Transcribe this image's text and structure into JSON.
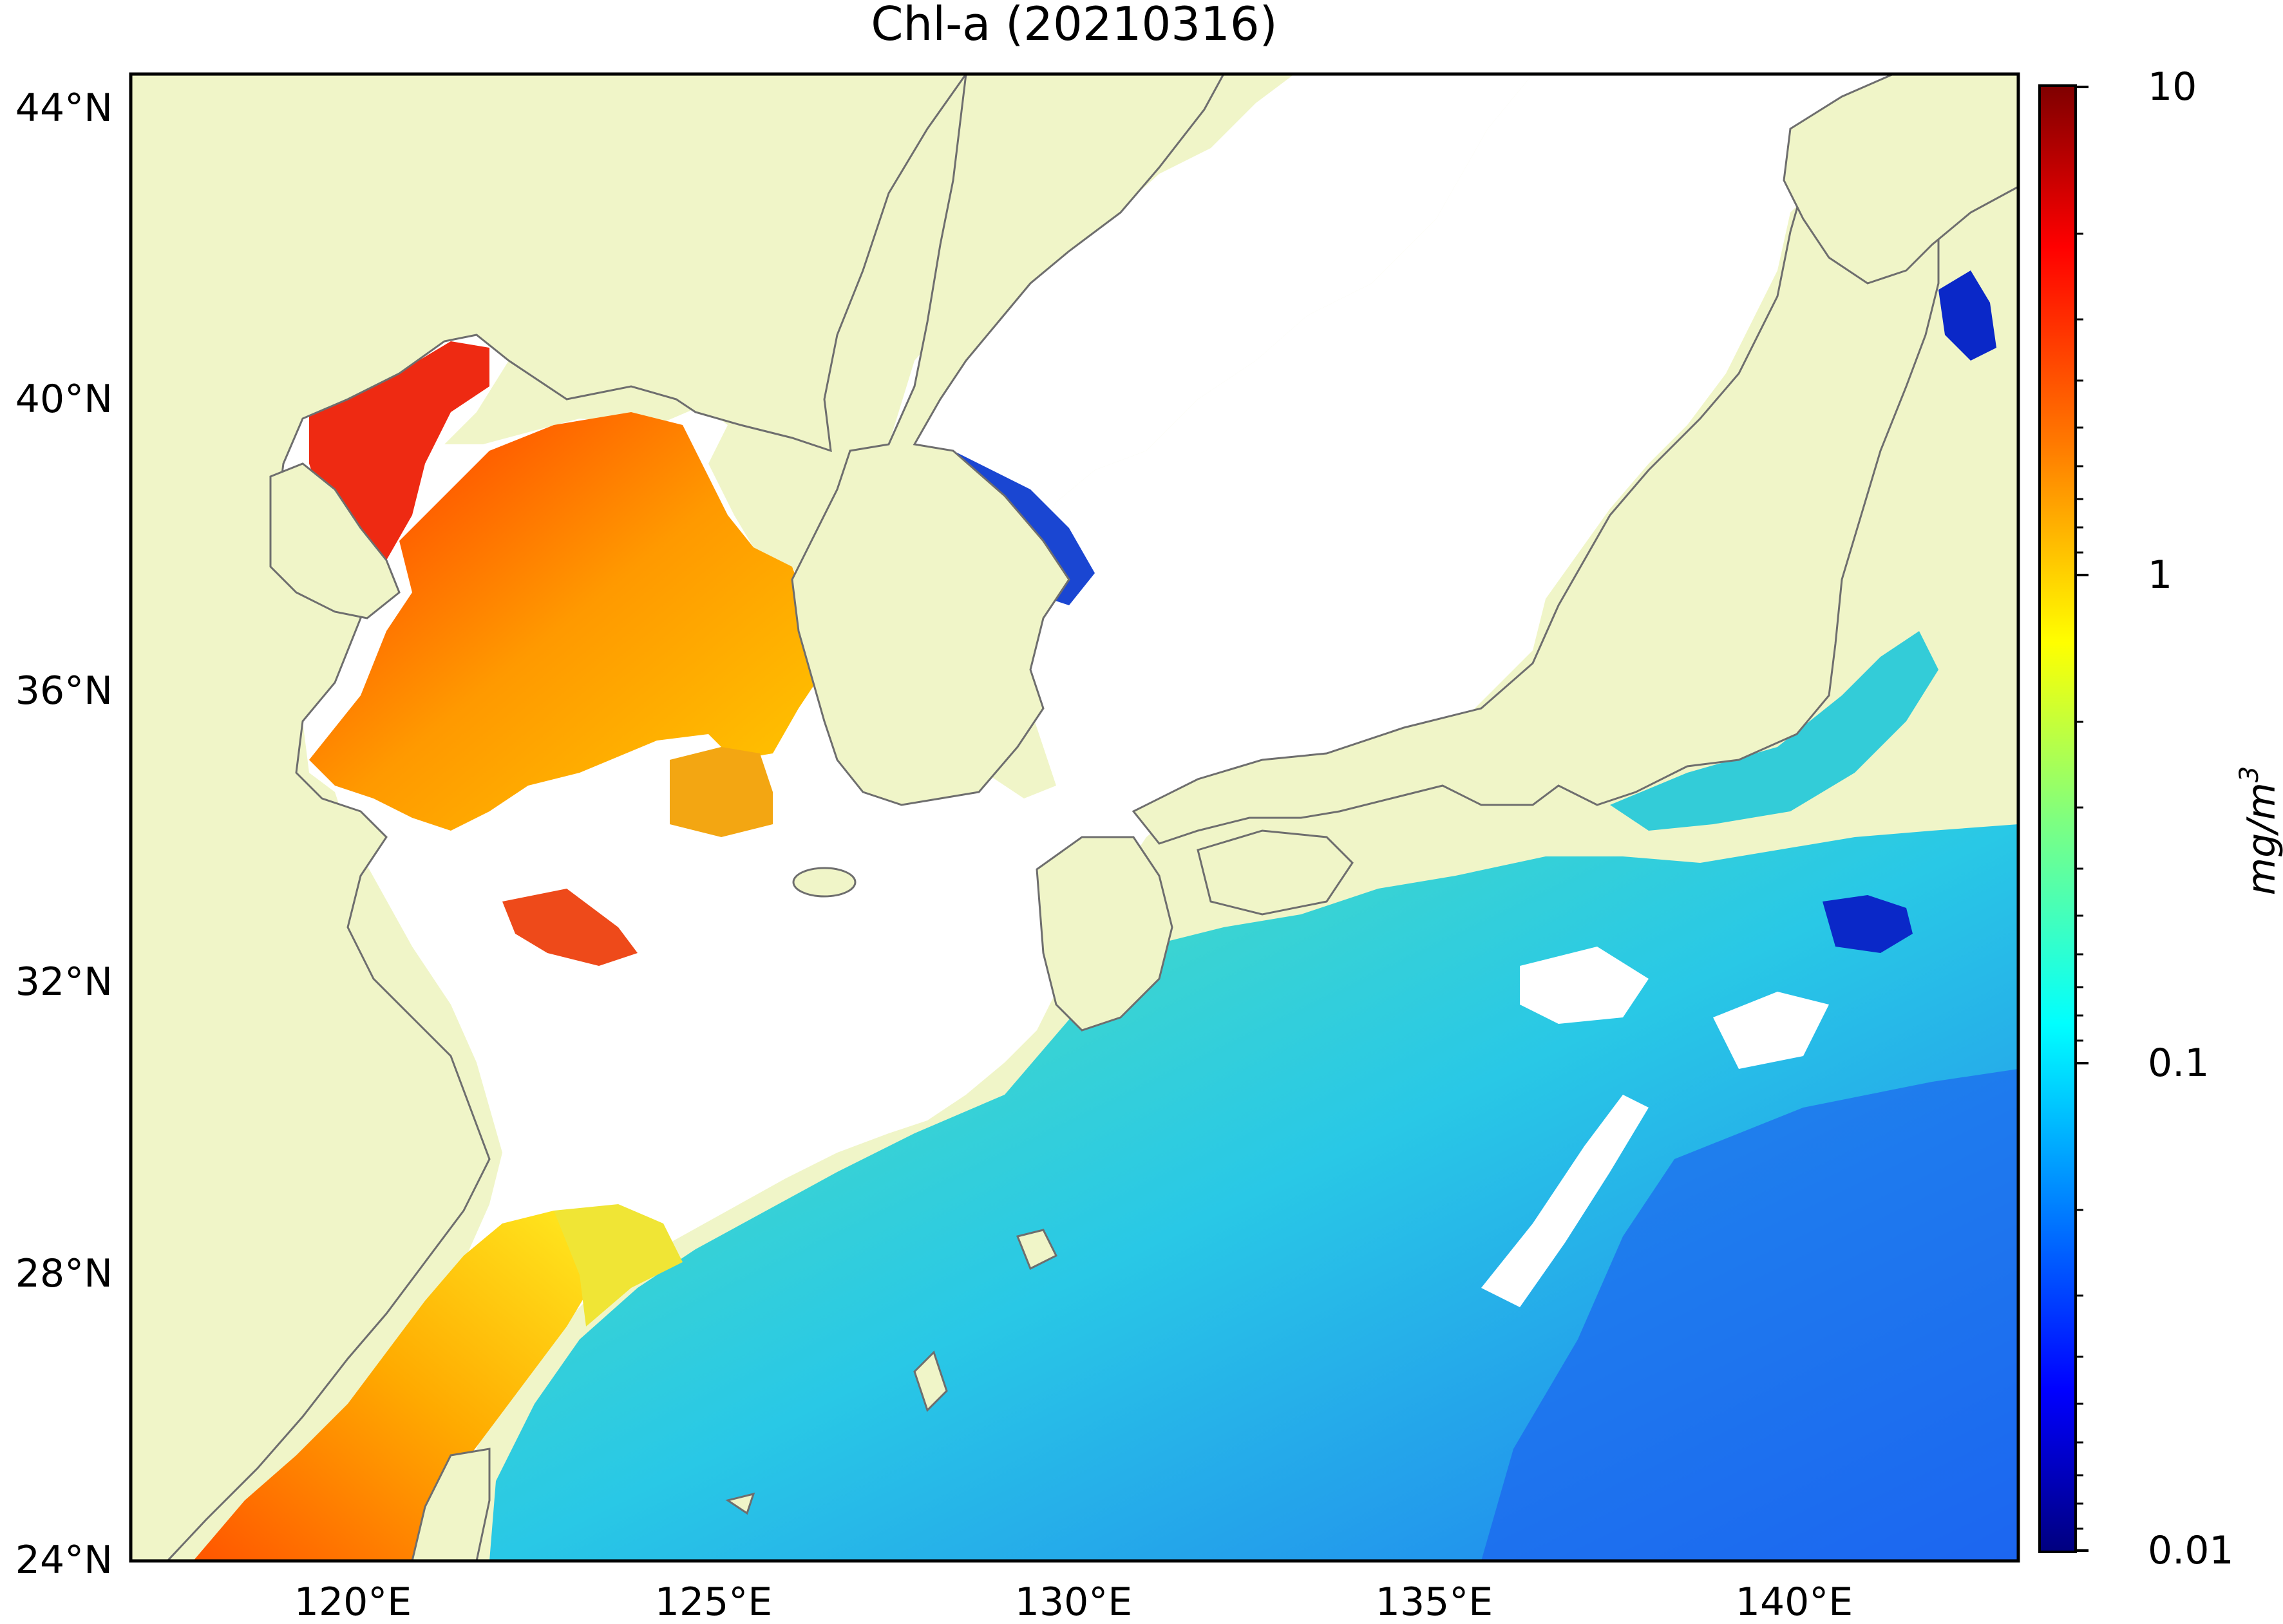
{
  "title": "Chl-a (20210316)",
  "map": {
    "lat_labels": [
      "44°N",
      "40°N",
      "36°N",
      "32°N",
      "28°N",
      "24°N"
    ],
    "lat_values": [
      44,
      40,
      36,
      32,
      28,
      24
    ],
    "lon_labels": [
      "120°E",
      "125°E",
      "130°E",
      "135°E",
      "140°E"
    ],
    "lon_values": [
      120,
      125,
      130,
      135,
      140
    ],
    "lon_range": [
      116.9,
      143.1
    ],
    "lat_range": [
      24,
      44.4
    ],
    "land_color": "#f0f5c8",
    "coast_color": "#6e6e6e",
    "nodata_color": "#ffffff"
  },
  "colorbar": {
    "label": "mg/m",
    "label_superscript": "3",
    "scale": "log",
    "ticks": [
      "10",
      "1",
      "0.1",
      "0.01"
    ],
    "tick_values": [
      10,
      1,
      0.1,
      0.01
    ],
    "colormap": "jet",
    "colors": [
      "#00007f",
      "#0000ff",
      "#007fff",
      "#00ffff",
      "#7fff7f",
      "#ffff00",
      "#ff7f00",
      "#ff0000",
      "#7f0000"
    ]
  }
}
